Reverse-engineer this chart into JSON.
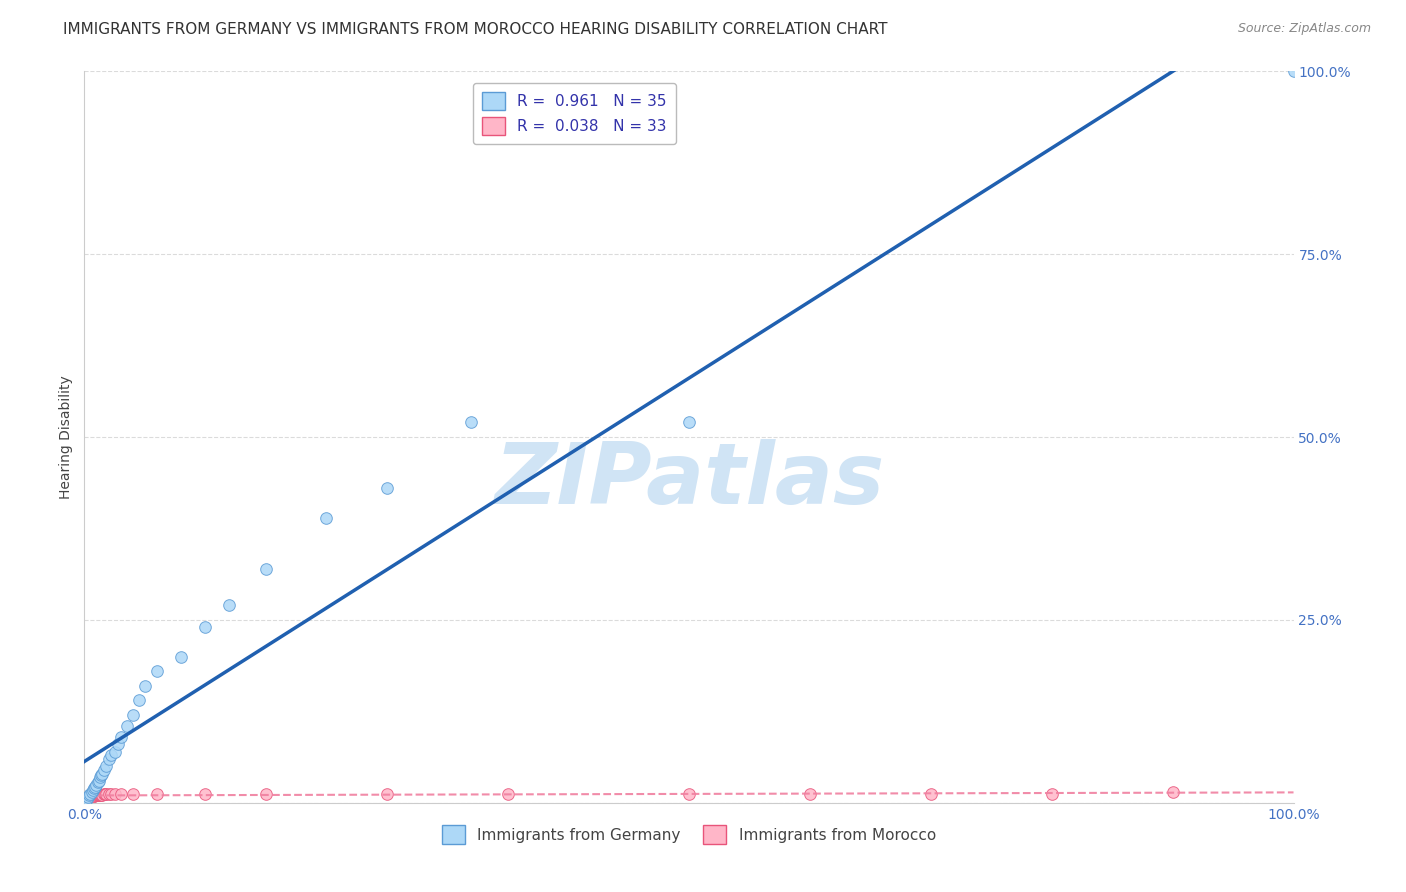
{
  "title": "IMMIGRANTS FROM GERMANY VS IMMIGRANTS FROM MOROCCO HEARING DISABILITY CORRELATION CHART",
  "source": "Source: ZipAtlas.com",
  "ylabel": "Hearing Disability",
  "xlim": [
    0,
    1.0
  ],
  "ylim": [
    0,
    1.0
  ],
  "germany_R": 0.961,
  "germany_N": 35,
  "morocco_R": 0.038,
  "morocco_N": 33,
  "germany_color": "#ADD8F7",
  "germany_edge_color": "#5B9BD5",
  "morocco_color": "#FFB6C8",
  "morocco_edge_color": "#E8547A",
  "germany_line_color": "#2060B0",
  "morocco_line_color": "#F080A0",
  "watermark_color": "#D0E4F5",
  "grid_color": "#CCCCCC",
  "background_color": "#FFFFFF",
  "title_fontsize": 11,
  "axis_label_fontsize": 10,
  "tick_fontsize": 10,
  "legend_fontsize": 11,
  "marker_size": 70,
  "germany_x": [
    0.002,
    0.003,
    0.004,
    0.005,
    0.006,
    0.007,
    0.008,
    0.009,
    0.01,
    0.011,
    0.012,
    0.013,
    0.014,
    0.015,
    0.016,
    0.018,
    0.02,
    0.022,
    0.025,
    0.028,
    0.03,
    0.035,
    0.04,
    0.045,
    0.05,
    0.06,
    0.08,
    0.1,
    0.12,
    0.15,
    0.2,
    0.25,
    0.32,
    0.5,
    1.0
  ],
  "germany_y": [
    0.005,
    0.008,
    0.01,
    0.012,
    0.015,
    0.018,
    0.02,
    0.022,
    0.025,
    0.028,
    0.03,
    0.035,
    0.038,
    0.04,
    0.045,
    0.05,
    0.06,
    0.065,
    0.07,
    0.08,
    0.09,
    0.105,
    0.12,
    0.14,
    0.16,
    0.18,
    0.2,
    0.24,
    0.27,
    0.32,
    0.39,
    0.43,
    0.52,
    0.52,
    1.0
  ],
  "morocco_x": [
    0.001,
    0.002,
    0.003,
    0.004,
    0.005,
    0.006,
    0.007,
    0.008,
    0.009,
    0.01,
    0.011,
    0.012,
    0.013,
    0.014,
    0.015,
    0.016,
    0.017,
    0.018,
    0.02,
    0.022,
    0.025,
    0.03,
    0.04,
    0.06,
    0.1,
    0.15,
    0.25,
    0.35,
    0.5,
    0.6,
    0.7,
    0.8,
    0.9
  ],
  "morocco_y": [
    0.005,
    0.006,
    0.007,
    0.007,
    0.008,
    0.008,
    0.009,
    0.009,
    0.01,
    0.01,
    0.01,
    0.011,
    0.011,
    0.011,
    0.011,
    0.012,
    0.012,
    0.012,
    0.012,
    0.012,
    0.012,
    0.012,
    0.012,
    0.012,
    0.012,
    0.012,
    0.012,
    0.012,
    0.012,
    0.012,
    0.012,
    0.012,
    0.015
  ]
}
